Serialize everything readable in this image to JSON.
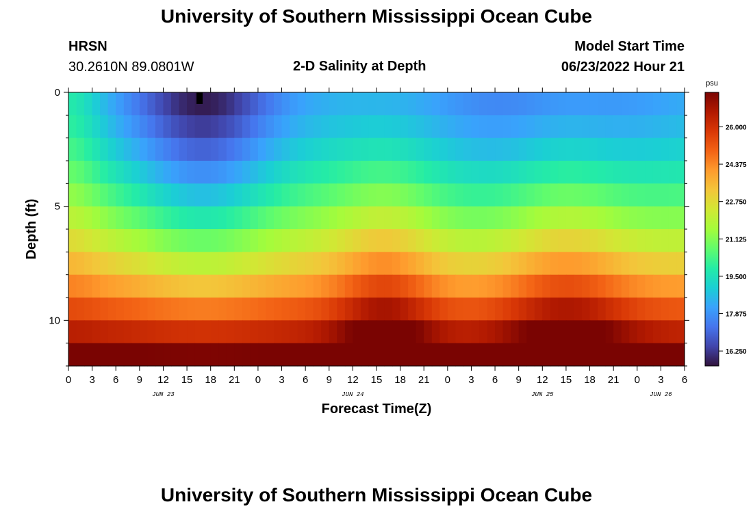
{
  "page_title": "University of Southern Mississippi Ocean Cube",
  "footer_title": "University of Southern Mississippi Ocean Cube",
  "header": {
    "station": "HRSN",
    "coords": "30.2610N  89.0801W",
    "plot_title": "2-D Salinity at Depth",
    "start_label": "Model Start Time",
    "start_value": "06/23/2022 Hour 21"
  },
  "chart_data": {
    "type": "heatmap",
    "title": "2-D Salinity at Depth",
    "xlabel": "Forecast Time(Z)",
    "ylabel": "Depth (ft)",
    "x_tick_labels": [
      "0",
      "3",
      "6",
      "9",
      "12",
      "15",
      "18",
      "21",
      "0",
      "3",
      "6",
      "9",
      "12",
      "15",
      "18",
      "21",
      "0",
      "3",
      "6",
      "9",
      "12",
      "15",
      "18",
      "21",
      "0",
      "3",
      "6"
    ],
    "date_labels": [
      {
        "label": "JUN 23",
        "hour": 12
      },
      {
        "label": "JUN 24",
        "hour": 36
      },
      {
        "label": "JUN 25",
        "hour": 60
      },
      {
        "label": "JUN 26",
        "hour": 75
      }
    ],
    "x_range_hours": [
      0,
      78
    ],
    "y_ticks": [
      0,
      5,
      10
    ],
    "ylim": [
      12,
      0
    ],
    "depth_layers": 12,
    "colorbar": {
      "unit": "psu",
      "ticks": [
        "26.000",
        "24.375",
        "22.750",
        "21.125",
        "19.500",
        "17.875",
        "16.250"
      ],
      "min": 15.6,
      "max": 27.5,
      "palette": [
        "#30123b",
        "#4145ab",
        "#4675ed",
        "#39a2fc",
        "#1bcfd4",
        "#24eca6",
        "#61fc6c",
        "#a4fc3b",
        "#d1e834",
        "#f3c63a",
        "#fe9b2d",
        "#f36315",
        "#d93806",
        "#b11901",
        "#7a0402"
      ]
    },
    "salinity_model": {
      "surface_min_psu": 15.9,
      "bottom_max_psu": 27.2,
      "fresh_pulses": [
        {
          "center_hour": 17,
          "width": 9
        }
      ],
      "salt_peaks": [
        {
          "center_hour": 40,
          "width": 6
        },
        {
          "center_hour": 63,
          "width": 8
        }
      ]
    }
  }
}
